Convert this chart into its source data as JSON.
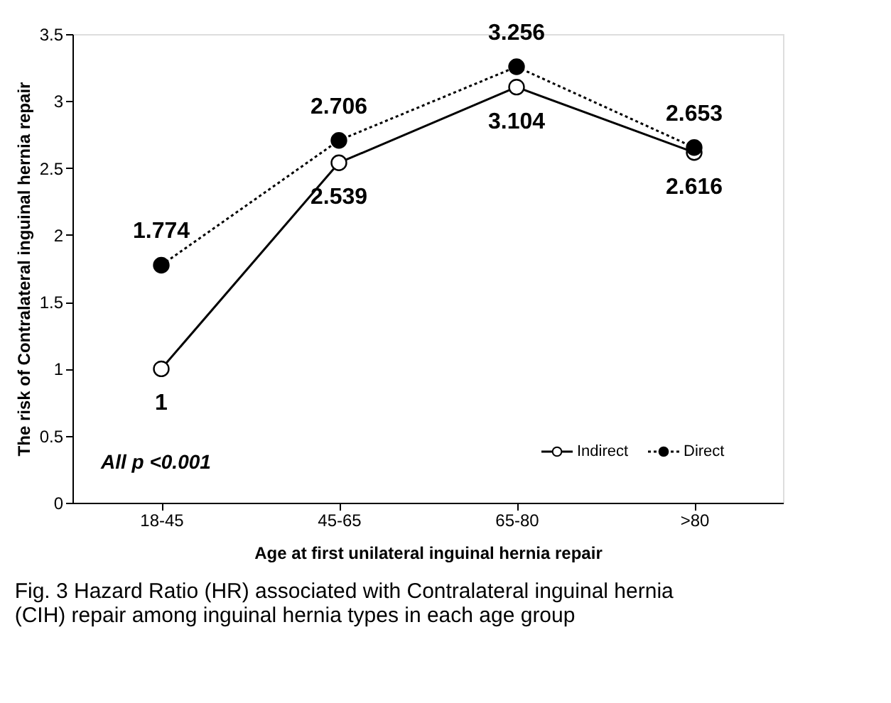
{
  "chart_data": {
    "type": "line",
    "xlabel": "Age at first unilateral inguinal hernia repair",
    "ylabel": "The risk of Contralateral inguinal hernia repair",
    "categories": [
      "18-45",
      "45-65",
      "65-80",
      ">80"
    ],
    "series": [
      {
        "name": "Indirect",
        "color": "#000000",
        "values": [
          1,
          2.539,
          3.104,
          2.616
        ],
        "line_style": "solid"
      },
      {
        "name": "Direct",
        "color": "#000000",
        "values": [
          1.774,
          2.706,
          3.256,
          2.653
        ],
        "line_style": "dotted"
      }
    ],
    "ylim": [
      0,
      3.5
    ],
    "yticks": [
      0,
      0.5,
      1,
      1.5,
      2,
      2.5,
      3,
      3.5
    ],
    "grid": false,
    "legend": "bottom right",
    "marker": "circle",
    "data_labels": true,
    "annotations": [
      "All p <0.001",
      "Fig. 3 Hazard Ratio (HR) associated with Contralateral inguinal hernia (CIH) repair among inguinal hernia types in each age group"
    ]
  }
}
